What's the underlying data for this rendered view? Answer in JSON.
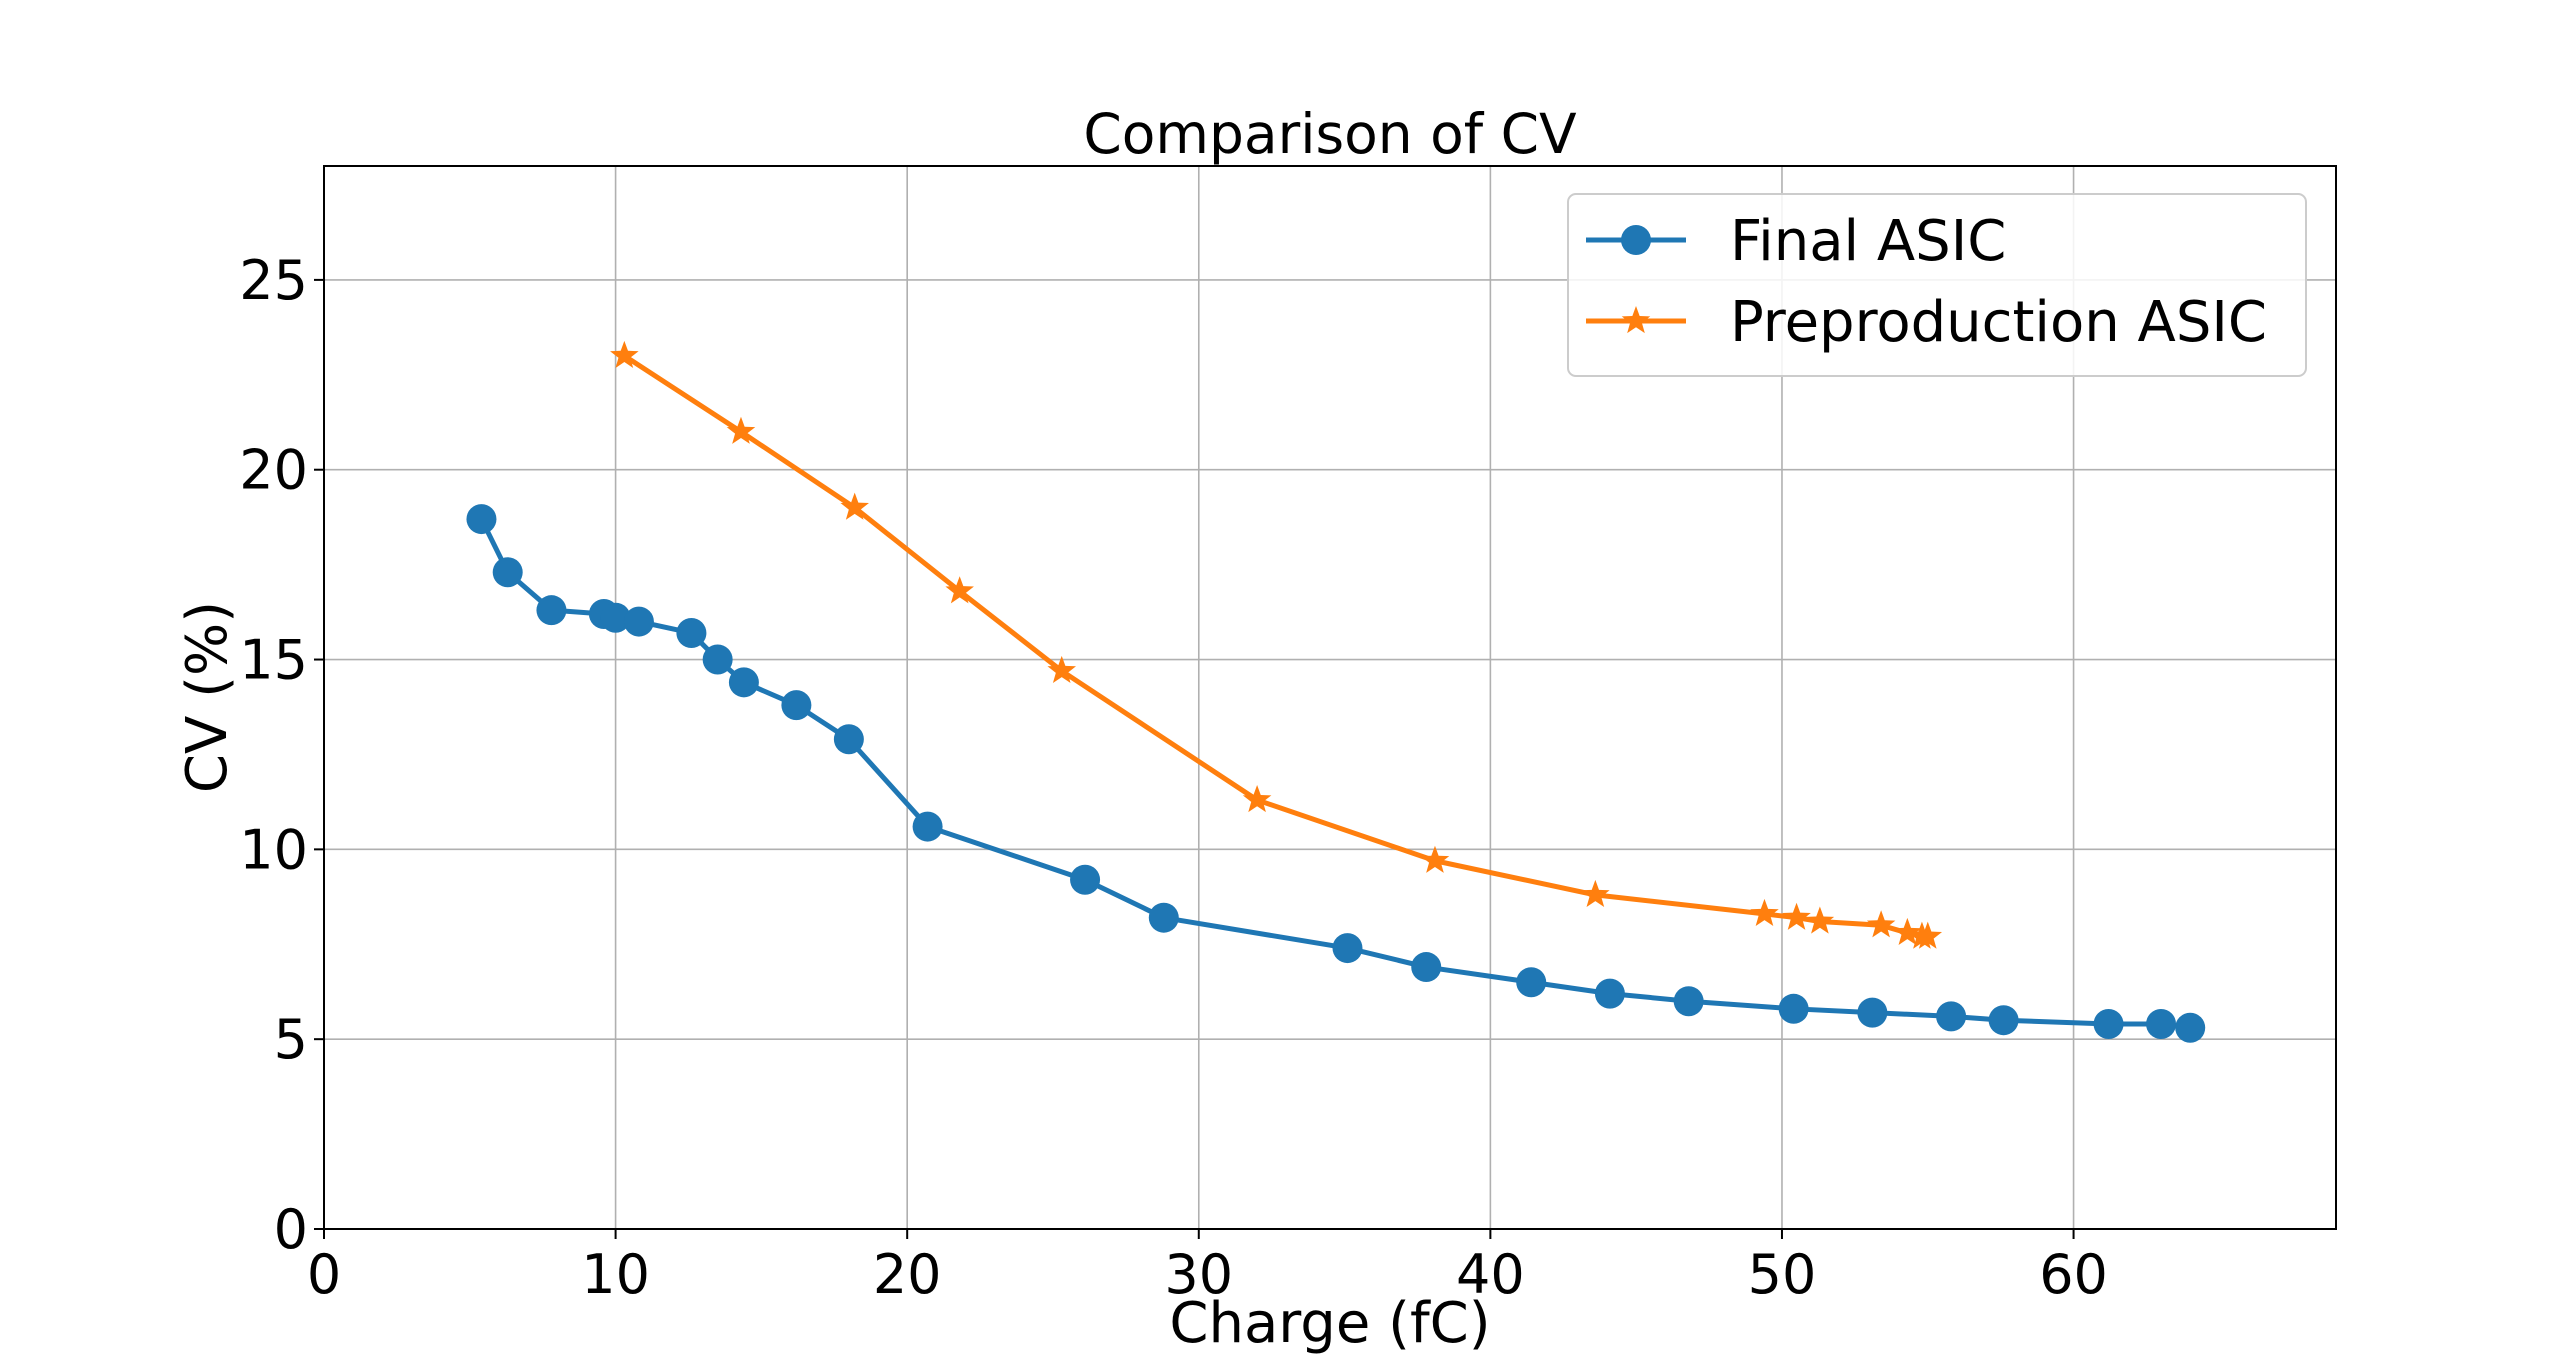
{
  "chart_data": {
    "type": "line",
    "title": "Comparison of CV",
    "xlabel": "Charge (fC)",
    "ylabel": "CV (%)",
    "xlim": [
      0,
      69
    ],
    "ylim": [
      0,
      28
    ],
    "xticks": [
      0,
      10,
      20,
      30,
      40,
      50,
      60
    ],
    "yticks": [
      0,
      5,
      10,
      15,
      20,
      25
    ],
    "grid": true,
    "legend_position": "top-right",
    "series": [
      {
        "name": "Final ASIC",
        "color": "#1f77b4",
        "marker": "circle",
        "x": [
          5.4,
          6.3,
          7.8,
          9.6,
          10.0,
          10.8,
          12.6,
          13.5,
          14.4,
          16.2,
          18.0,
          20.7,
          26.1,
          28.8,
          35.1,
          37.8,
          41.4,
          44.1,
          46.8,
          50.4,
          53.1,
          55.8,
          57.6,
          61.2,
          63.0,
          64.0
        ],
        "y": [
          18.7,
          17.3,
          16.3,
          16.2,
          16.1,
          16.0,
          15.7,
          15.0,
          14.4,
          13.8,
          12.9,
          10.6,
          9.2,
          8.2,
          7.4,
          6.9,
          6.5,
          6.2,
          6.0,
          5.8,
          5.7,
          5.6,
          5.5,
          5.4,
          5.4,
          5.3
        ]
      },
      {
        "name": "Preproduction ASIC",
        "color": "#ff7f0e",
        "marker": "star",
        "x": [
          10.3,
          14.3,
          18.2,
          21.8,
          25.3,
          32.0,
          38.1,
          43.6,
          49.4,
          50.5,
          51.3,
          53.4,
          54.3,
          54.8,
          55.0
        ],
        "y": [
          23.0,
          21.0,
          19.0,
          16.8,
          14.7,
          11.3,
          9.7,
          8.8,
          8.3,
          8.2,
          8.1,
          8.0,
          7.8,
          7.7,
          7.7
        ]
      }
    ]
  }
}
